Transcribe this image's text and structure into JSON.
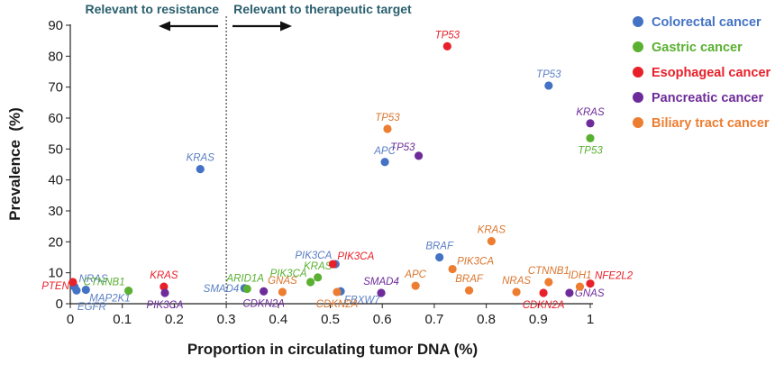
{
  "chart_data": {
    "type": "scatter",
    "xlabel": "Proportion in circulating tumor DNA (%)",
    "ylabel": "Prevalence  (%)",
    "xlim": [
      0,
      1
    ],
    "ylim": [
      0,
      90
    ],
    "x_ticks": [
      "0",
      "0.1",
      "0.2",
      "0.3",
      "0.4",
      "0.5",
      "0.6",
      "0.7",
      "0.8",
      "0.9",
      "1"
    ],
    "y_ticks": [
      "0",
      "10",
      "20",
      "30",
      "40",
      "50",
      "60",
      "70",
      "80",
      "90"
    ],
    "grid": false,
    "legend_position": "top-right",
    "divider_x": 0.3,
    "annotations": {
      "left": "Relevant to resistance",
      "right": "Relevant to therapeutic target"
    },
    "series": [
      {
        "name": "Colorectal cancer",
        "color": "#4472c4",
        "label_color": "#5b7fc4",
        "points": [
          {
            "label": "KRAS",
            "x": 0.25,
            "y": 43.5,
            "pos": "above"
          },
          {
            "label": "TP53",
            "x": 0.92,
            "y": 70.5,
            "pos": "above"
          },
          {
            "label": "APC",
            "x": 0.605,
            "y": 45.8,
            "pos": "above"
          },
          {
            "label": "BRAF",
            "x": 0.71,
            "y": 15.0,
            "pos": "above"
          },
          {
            "label": "PIK3CA",
            "x": 0.51,
            "y": 12.8,
            "pos": "above-left"
          },
          {
            "label": "NRAS",
            "x": 0.008,
            "y": 5.5,
            "pos": "above-right"
          },
          {
            "label": "MAP2K1",
            "x": 0.03,
            "y": 4.5,
            "pos": "below-right"
          },
          {
            "label": "EGFR",
            "x": 0.012,
            "y": 4.3,
            "pos": "below-right2"
          },
          {
            "label": "SMAD4",
            "x": 0.335,
            "y": 5.0,
            "pos": "left"
          },
          {
            "label": "FBXW7",
            "x": 0.52,
            "y": 4.0,
            "pos": "below-right"
          }
        ]
      },
      {
        "name": "Gastric cancer",
        "color": "#5ab031",
        "label_color": "#5ab031",
        "points": [
          {
            "label": "TP53",
            "x": 1.0,
            "y": 53.5,
            "pos": "below"
          },
          {
            "label": "CTNNB1",
            "x": 0.112,
            "y": 4.2,
            "pos": "above-left"
          },
          {
            "label": "ARID1A",
            "x": 0.34,
            "y": 4.8,
            "pos": "above-left-r"
          },
          {
            "label": "PIK3CA",
            "x": 0.462,
            "y": 7.0,
            "pos": "above-left"
          },
          {
            "label": "KRAS",
            "x": 0.476,
            "y": 8.5,
            "pos": "above"
          }
        ]
      },
      {
        "name": "Esophageal cancer",
        "color": "#e8202a",
        "label_color": "#e8202a",
        "points": [
          {
            "label": "TP53",
            "x": 0.725,
            "y": 83.2,
            "pos": "above"
          },
          {
            "label": "PIK3CA",
            "x": 0.505,
            "y": 12.8,
            "pos": "above-right"
          },
          {
            "label": "KRAS",
            "x": 0.18,
            "y": 5.5,
            "pos": "above"
          },
          {
            "label": "PTEN",
            "x": 0.005,
            "y": 7.0,
            "pos": "below-left"
          },
          {
            "label": "CDKN2A",
            "x": 0.91,
            "y": 3.5,
            "pos": "below"
          },
          {
            "label": "NFE2L2",
            "x": 1.0,
            "y": 6.5,
            "pos": "above-right"
          }
        ]
      },
      {
        "name": "Pancreatic cancer",
        "color": "#6e2c9a",
        "label_color": "#6e2c9a",
        "points": [
          {
            "label": "KRAS",
            "x": 1.0,
            "y": 58.3,
            "pos": "above"
          },
          {
            "label": "TP53",
            "x": 0.67,
            "y": 47.8,
            "pos": "above-left"
          },
          {
            "label": "PIK3CA",
            "x": 0.182,
            "y": 3.5,
            "pos": "below"
          },
          {
            "label": "CDKN2A",
            "x": 0.372,
            "y": 4.0,
            "pos": "below"
          },
          {
            "label": "SMAD4",
            "x": 0.598,
            "y": 3.5,
            "pos": "above"
          },
          {
            "label": "GNAS",
            "x": 0.96,
            "y": 3.5,
            "pos": "right"
          }
        ]
      },
      {
        "name": "Biliary tract cancer",
        "color": "#ed7d31",
        "label_color": "#d9762e",
        "points": [
          {
            "label": "TP53",
            "x": 0.61,
            "y": 56.5,
            "pos": "above"
          },
          {
            "label": "KRAS",
            "x": 0.81,
            "y": 20.2,
            "pos": "above"
          },
          {
            "label": "PIK3CA",
            "x": 0.735,
            "y": 11.2,
            "pos": "above-right"
          },
          {
            "label": "APC",
            "x": 0.664,
            "y": 5.8,
            "pos": "above"
          },
          {
            "label": "BRAF",
            "x": 0.767,
            "y": 4.3,
            "pos": "above"
          },
          {
            "label": "NRAS",
            "x": 0.858,
            "y": 3.8,
            "pos": "above"
          },
          {
            "label": "CTNNB1",
            "x": 0.92,
            "y": 7.0,
            "pos": "above"
          },
          {
            "label": "IDH1",
            "x": 0.98,
            "y": 5.5,
            "pos": "above"
          },
          {
            "label": "GNAS",
            "x": 0.408,
            "y": 3.8,
            "pos": "above"
          },
          {
            "label": "CDKN2A",
            "x": 0.513,
            "y": 3.8,
            "pos": "below"
          }
        ]
      }
    ]
  }
}
